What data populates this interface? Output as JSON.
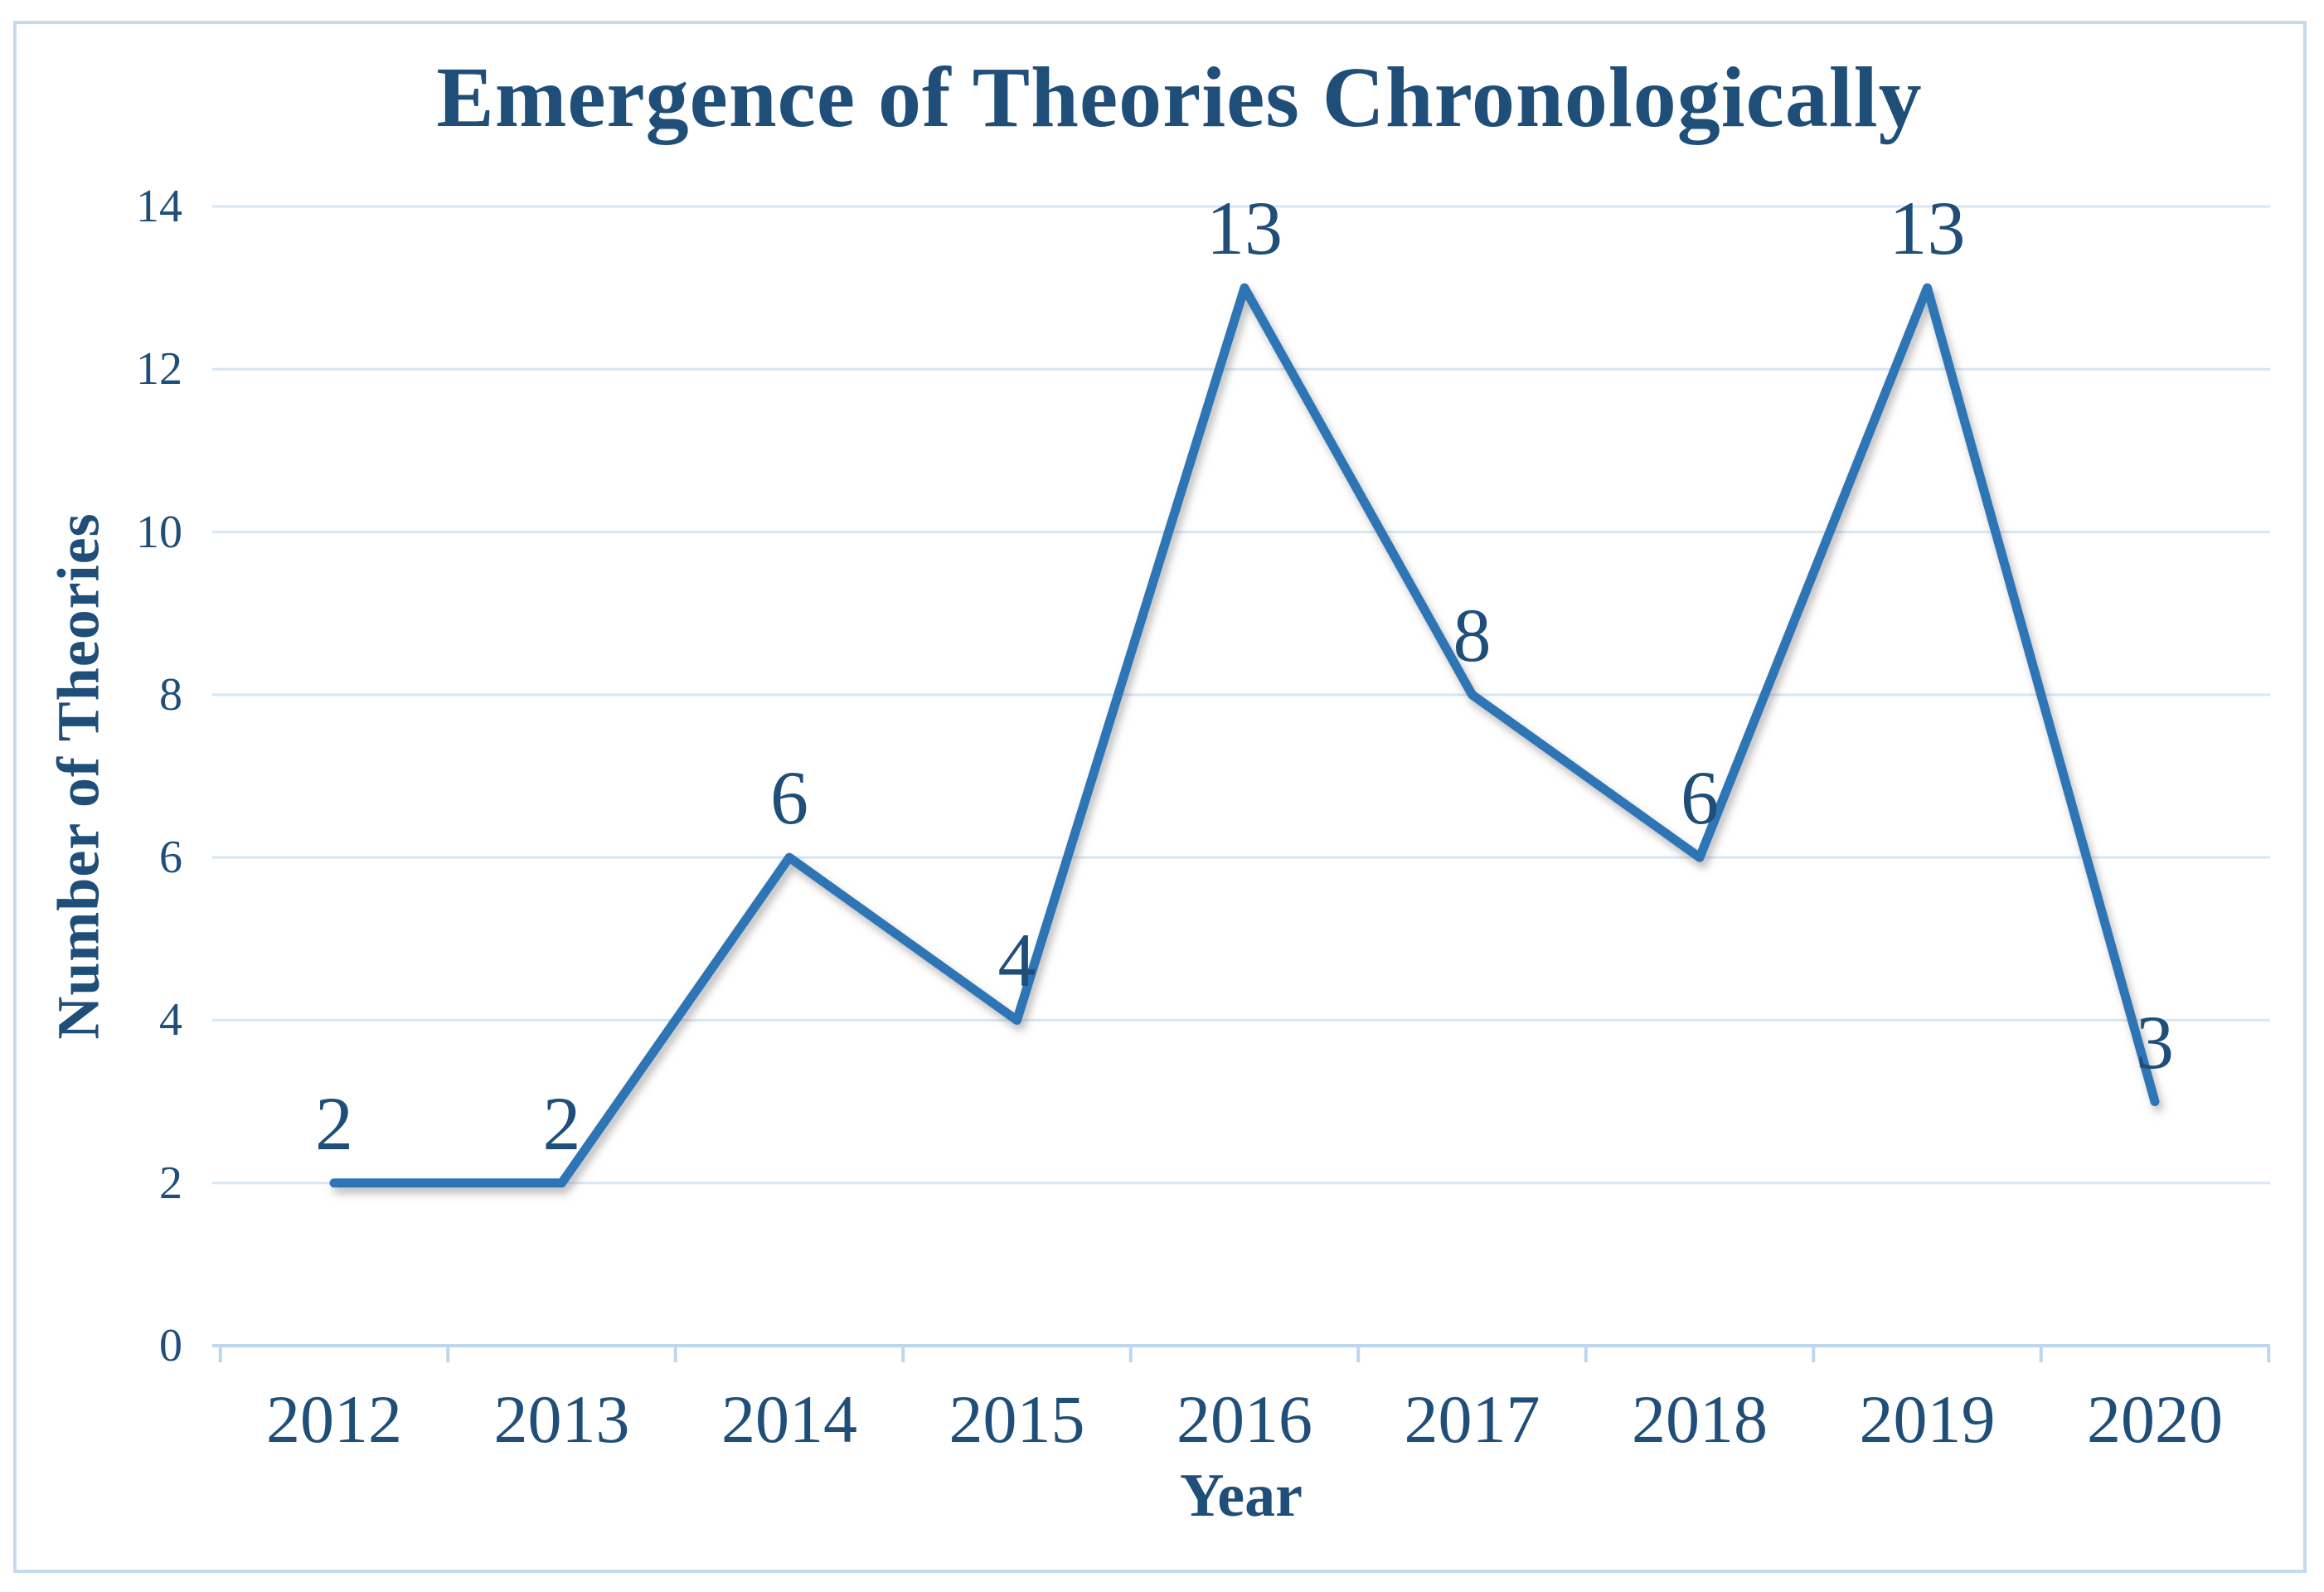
{
  "chart_data": {
    "type": "line",
    "title": "Emergence of Theories Chronologically",
    "xlabel": "Year",
    "ylabel": "Number of Theories",
    "categories": [
      "2012",
      "2013",
      "2014",
      "2015",
      "2016",
      "2017",
      "2018",
      "2019",
      "2020"
    ],
    "values": [
      2,
      2,
      6,
      4,
      13,
      8,
      6,
      13,
      3
    ],
    "data_labels": [
      "2",
      "2",
      "6",
      "4",
      "13",
      "8",
      "6",
      "13",
      "3"
    ],
    "yticks": [
      0,
      2,
      4,
      6,
      8,
      10,
      12,
      14
    ],
    "ylim": [
      0,
      14
    ],
    "grid": true,
    "gridlines": "horizontal",
    "legend": "none"
  },
  "style": {
    "text_color": "#1F4E79",
    "line_color": "#2E75B6",
    "gridline_color": "#D9E6F4",
    "axis_color": "#BDD7EE",
    "frame_border_color": "#C5DAF0",
    "background": "#FFFFFF"
  }
}
